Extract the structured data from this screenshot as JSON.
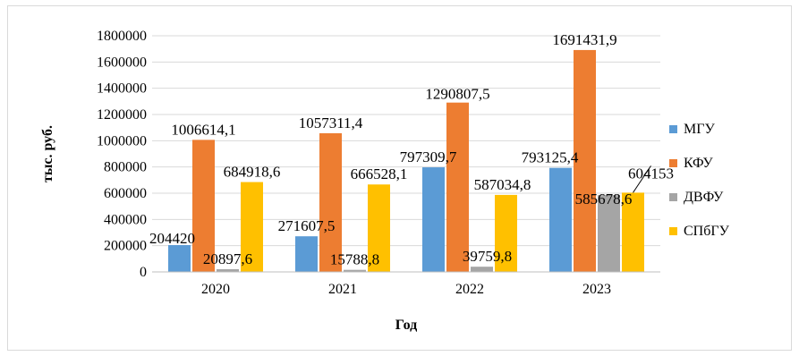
{
  "chart_data": {
    "type": "bar",
    "categories": [
      "2020",
      "2021",
      "2022",
      "2023"
    ],
    "series": [
      {
        "name": "МГУ",
        "color": "#5b9bd5",
        "values": [
          204420,
          271607.5,
          797309.7,
          793125.4
        ],
        "labels": [
          "204420",
          "271607,5",
          "797309,7",
          "793125,4"
        ]
      },
      {
        "name": "КФУ",
        "color": "#ed7d31",
        "values": [
          1006614.1,
          1057311.4,
          1290807.5,
          1691431.9
        ],
        "labels": [
          "1006614,1",
          "1057311,4",
          "1290807,5",
          "1691431,9"
        ]
      },
      {
        "name": "ДВФУ",
        "color": "#a5a5a5",
        "values": [
          20897.6,
          15788.8,
          39759.8,
          585678.6
        ],
        "labels": [
          "20897,6",
          "15788,8",
          "39759,8",
          "585678,6"
        ]
      },
      {
        "name": "СПбГУ",
        "color": "#ffc000",
        "values": [
          684918.6,
          666528.1,
          587034.8,
          604153
        ],
        "labels": [
          "684918,6",
          "666528,1",
          "587034,8",
          "604153"
        ]
      }
    ],
    "xlabel": "Год",
    "ylabel": "тыс. руб.",
    "ylim": [
      0,
      1800000
    ],
    "yticks": [
      "0",
      "200000",
      "400000",
      "600000",
      "800000",
      "1000000",
      "1200000",
      "1400000",
      "1600000",
      "1800000"
    ],
    "grid": true,
    "legend": "right"
  }
}
